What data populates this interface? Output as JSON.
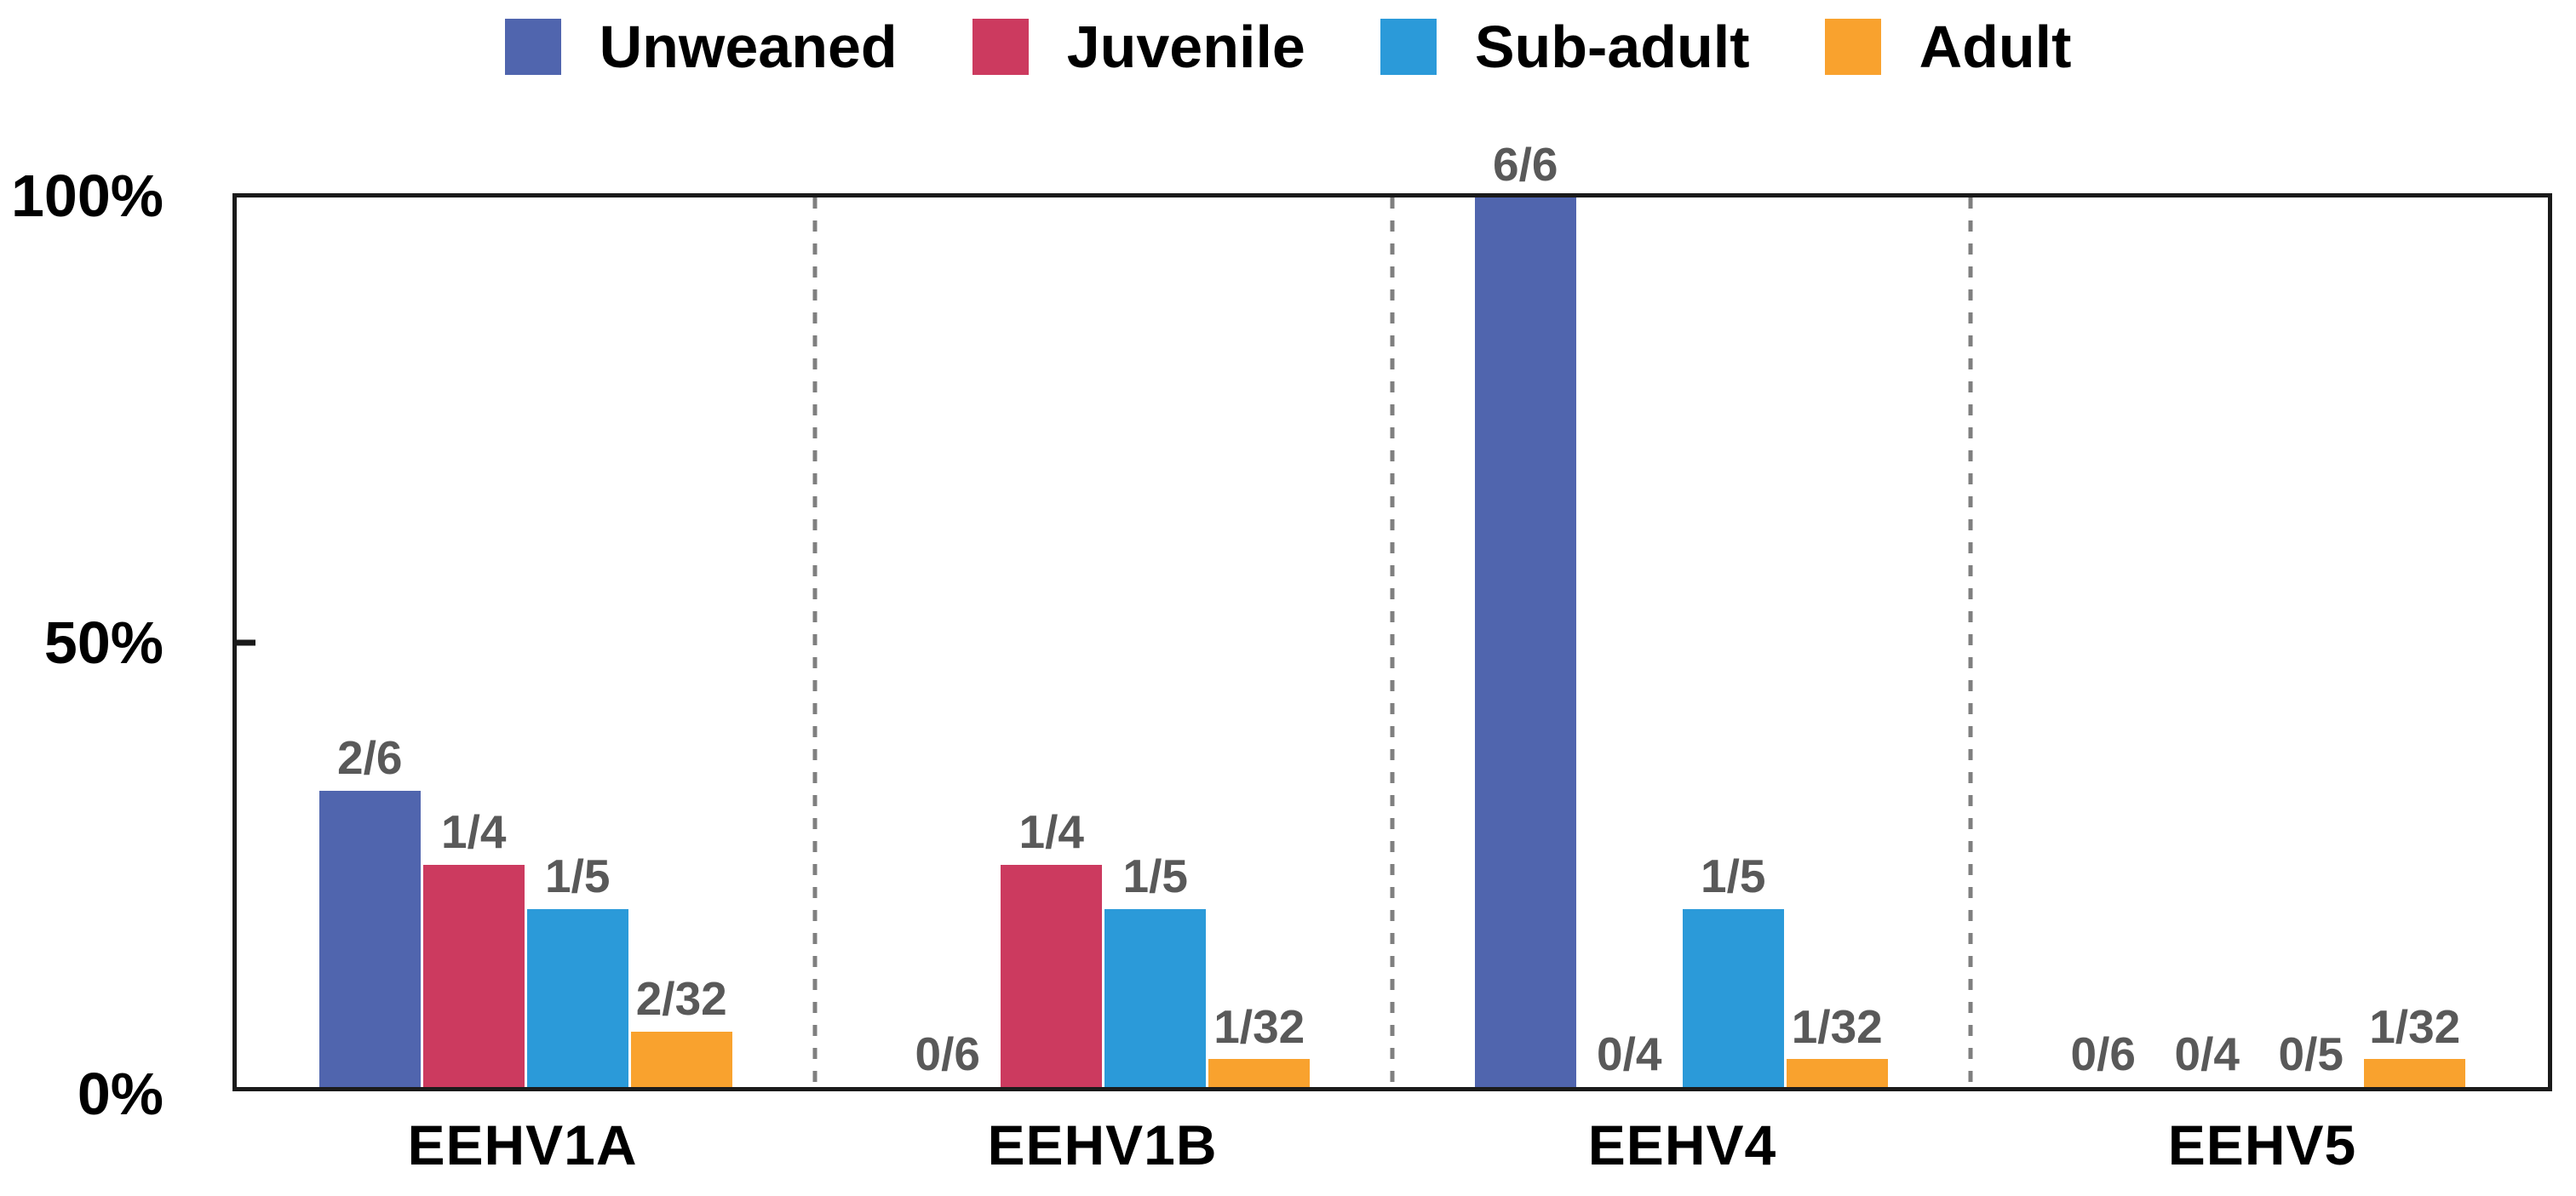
{
  "chart_data": {
    "type": "bar",
    "title": "",
    "categories": [
      "EEHV1A",
      "EEHV1B",
      "EEHV4",
      "EEHV5"
    ],
    "series": [
      {
        "name": "Unweaned",
        "color": "#5065AE",
        "labels": [
          "2/6",
          "0/6",
          "6/6",
          "0/6"
        ],
        "values": [
          33.33,
          0,
          100,
          0
        ]
      },
      {
        "name": "Juvenile",
        "color": "#CC3A5F",
        "labels": [
          "1/4",
          "1/4",
          "0/4",
          "0/4"
        ],
        "values": [
          25,
          25,
          0,
          0
        ]
      },
      {
        "name": "Sub-adult",
        "color": "#2B9AD9",
        "labels": [
          "1/5",
          "1/5",
          "1/5",
          "0/5"
        ],
        "values": [
          20,
          20,
          20,
          0
        ]
      },
      {
        "name": "Adult",
        "color": "#F9A22E",
        "labels": [
          "2/32",
          "1/32",
          "1/32",
          "1/32"
        ],
        "values": [
          6.25,
          3.125,
          3.125,
          3.125
        ]
      }
    ],
    "ylim": [
      0,
      100
    ],
    "y_ticks": [
      "0%",
      "50%",
      "100%"
    ],
    "ylabel": "",
    "xlabel": "",
    "grid": "off",
    "legend_position": "top",
    "value_label_color": "#595959",
    "separator_style": "dashed-vertical",
    "separator_color": "#7f7f7f",
    "axis_color": "#1a1a1a"
  }
}
